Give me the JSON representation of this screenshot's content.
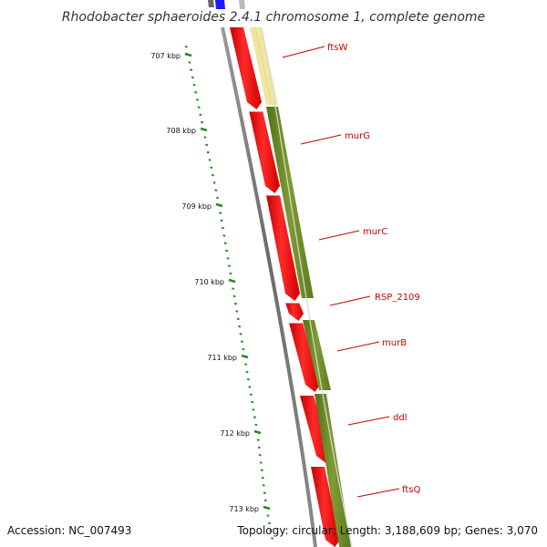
{
  "title": "Rhodobacter sphaeroides 2.4.1 chromosome 1, complete genome",
  "footer": {
    "accession": "Accession: NC_007493",
    "summary": "Topology: circular; Length: 3,188,609 bp; Genes: 3,070"
  },
  "colors": {
    "backbone": "#7a7a7a",
    "cds": "#ff0000",
    "gene_feature": "#6b8e23",
    "gene_feature_light": "#f0e6a0",
    "ticks": "#228b22",
    "labels": "#cc0000",
    "top_blue": "#1a1aff"
  },
  "ruler": {
    "major_ticks": [
      {
        "kbp": 707,
        "label": "707 kbp"
      },
      {
        "kbp": 708,
        "label": "708 kbp"
      },
      {
        "kbp": 709,
        "label": "709 kbp"
      },
      {
        "kbp": 710,
        "label": "710 kbp"
      },
      {
        "kbp": 711,
        "label": "711 kbp"
      },
      {
        "kbp": 712,
        "label": "712 kbp"
      },
      {
        "kbp": 713,
        "label": "713 kbp"
      }
    ]
  },
  "genes": [
    {
      "name": "ftsW",
      "label": "ftsW"
    },
    {
      "name": "murG",
      "label": "murG"
    },
    {
      "name": "murC",
      "label": "murC"
    },
    {
      "name": "RSP_2109",
      "label": "RSP_2109"
    },
    {
      "name": "murB",
      "label": "murB"
    },
    {
      "name": "ddl",
      "label": "ddl"
    },
    {
      "name": "ftsQ",
      "label": "ftsQ"
    }
  ]
}
